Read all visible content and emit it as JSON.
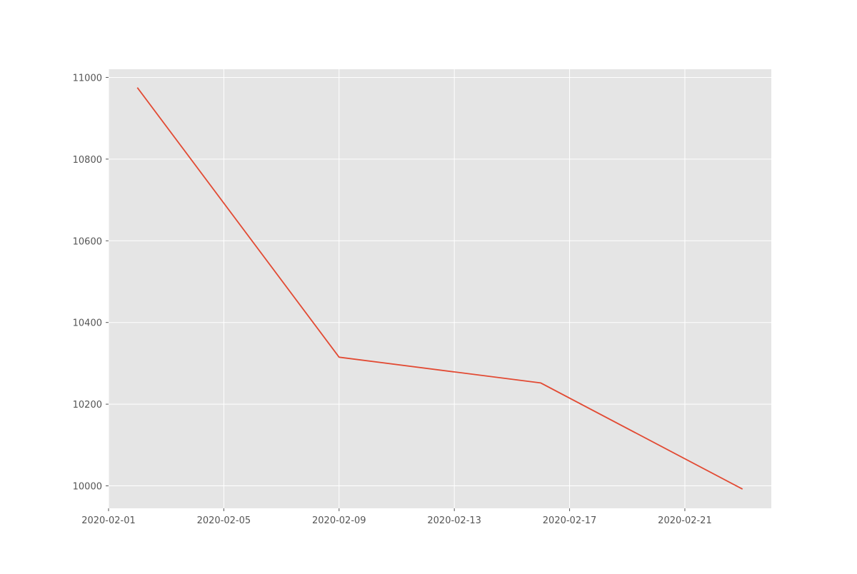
{
  "chart_data": {
    "type": "line",
    "title": "",
    "xlabel": "",
    "ylabel": "",
    "x": [
      "2020-02-02",
      "2020-02-09",
      "2020-02-16",
      "2020-02-23"
    ],
    "series": [
      {
        "values": [
          10975,
          10315,
          10252,
          9992
        ],
        "color": "#e24a33"
      }
    ],
    "xlim": [
      "2020-02-01",
      "2020-02-24"
    ],
    "ylim": [
      9945,
      11020
    ],
    "xticks": [
      "2020-02-01",
      "2020-02-05",
      "2020-02-09",
      "2020-02-13",
      "2020-02-17",
      "2020-02-21"
    ],
    "yticks": [
      10000,
      10200,
      10400,
      10600,
      10800,
      11000
    ],
    "grid": true,
    "style": {
      "plot_background": "#e5e5e5",
      "grid_color": "#ffffff",
      "axis_text_color": "#555555",
      "tick_color": "#555555"
    }
  }
}
